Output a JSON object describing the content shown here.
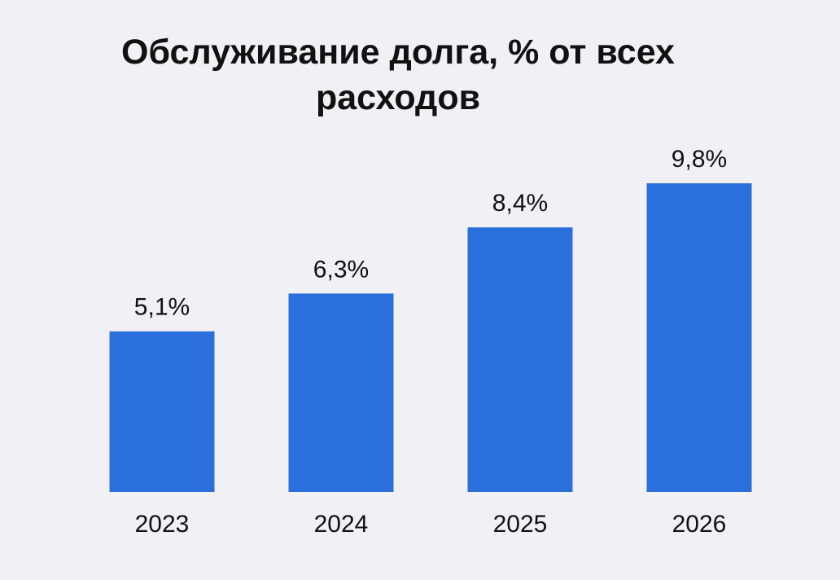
{
  "chart_data": {
    "type": "bar",
    "title": "Обслуживание долга, % от всех расходов",
    "categories": [
      "2023",
      "2024",
      "2025",
      "2026"
    ],
    "values": [
      5.1,
      6.3,
      8.4,
      9.8
    ],
    "value_labels": [
      "5,1%",
      "6,3%",
      "8,4%",
      "9,8%"
    ],
    "color": "#2a6fdb"
  }
}
